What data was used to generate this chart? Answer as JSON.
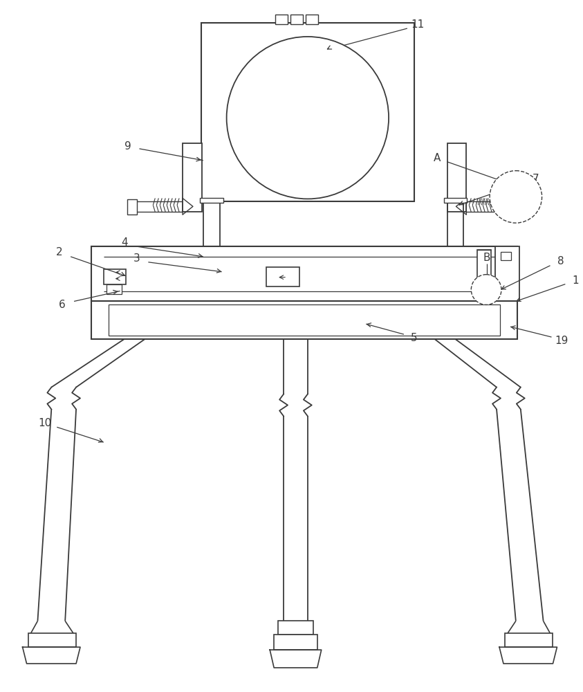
{
  "bg_color": "#ffffff",
  "line_color": "#3a3a3a",
  "line_width": 1.3,
  "fig_width": 8.43,
  "fig_height": 10.0
}
